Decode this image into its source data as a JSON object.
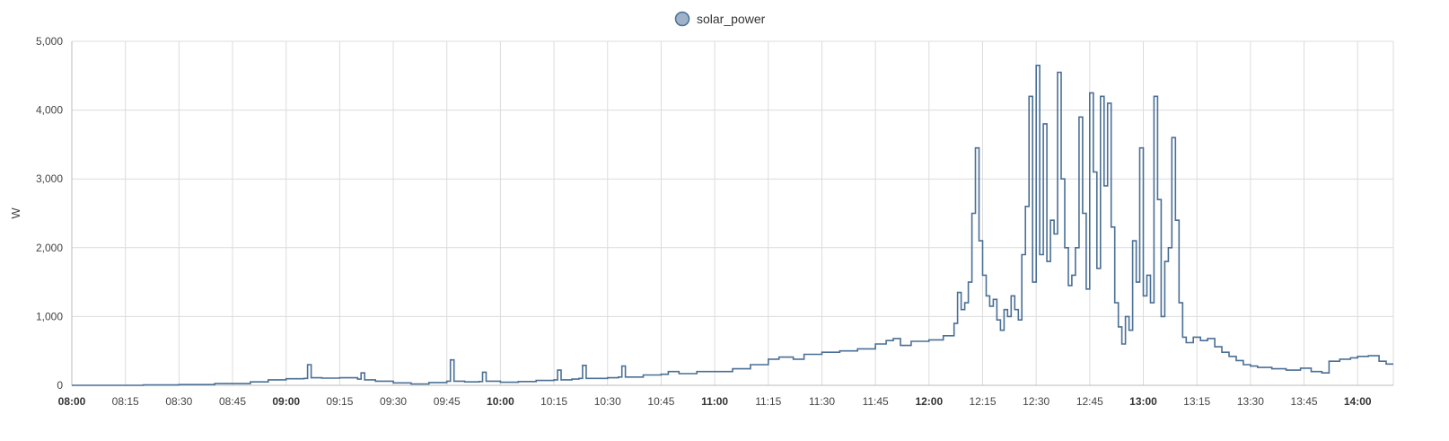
{
  "chart_data": {
    "type": "line",
    "legend": {
      "placement": "top-center",
      "entries": [
        {
          "name": "solar_power",
          "color": "#4a6f95",
          "swatch_fill": "#9fb3c8"
        }
      ]
    },
    "ylabel": "W",
    "xlabel": "",
    "ylim": [
      0,
      5000
    ],
    "yticks": [
      0,
      1000,
      2000,
      3000,
      4000,
      5000
    ],
    "ytick_labels": [
      "0",
      "1,000",
      "2,000",
      "3,000",
      "4,000",
      "5,000"
    ],
    "xlim": [
      "08:00",
      "14:10"
    ],
    "xticks": [
      {
        "label": "08:00",
        "bold": true
      },
      {
        "label": "08:15",
        "bold": false
      },
      {
        "label": "08:30",
        "bold": false
      },
      {
        "label": "08:45",
        "bold": false
      },
      {
        "label": "09:00",
        "bold": true
      },
      {
        "label": "09:15",
        "bold": false
      },
      {
        "label": "09:30",
        "bold": false
      },
      {
        "label": "09:45",
        "bold": false
      },
      {
        "label": "10:00",
        "bold": true
      },
      {
        "label": "10:15",
        "bold": false
      },
      {
        "label": "10:30",
        "bold": false
      },
      {
        "label": "10:45",
        "bold": false
      },
      {
        "label": "11:00",
        "bold": true
      },
      {
        "label": "11:15",
        "bold": false
      },
      {
        "label": "11:30",
        "bold": false
      },
      {
        "label": "11:45",
        "bold": false
      },
      {
        "label": "12:00",
        "bold": true
      },
      {
        "label": "12:15",
        "bold": false
      },
      {
        "label": "12:30",
        "bold": false
      },
      {
        "label": "12:45",
        "bold": false
      },
      {
        "label": "13:00",
        "bold": true
      },
      {
        "label": "13:15",
        "bold": false
      },
      {
        "label": "13:30",
        "bold": false
      },
      {
        "label": "13:45",
        "bold": false
      },
      {
        "label": "14:00",
        "bold": true
      }
    ],
    "grid": true,
    "series": [
      {
        "name": "solar_power",
        "color": "#4a6f95",
        "step": true,
        "points": [
          [
            "08:00",
            0
          ],
          [
            "08:20",
            5
          ],
          [
            "08:30",
            10
          ],
          [
            "08:40",
            25
          ],
          [
            "08:50",
            50
          ],
          [
            "08:55",
            80
          ],
          [
            "09:00",
            95
          ],
          [
            "09:05",
            100
          ],
          [
            "09:06",
            300
          ],
          [
            "09:07",
            110
          ],
          [
            "09:10",
            105
          ],
          [
            "09:15",
            110
          ],
          [
            "09:20",
            90
          ],
          [
            "09:21",
            180
          ],
          [
            "09:22",
            80
          ],
          [
            "09:25",
            60
          ],
          [
            "09:30",
            35
          ],
          [
            "09:35",
            20
          ],
          [
            "09:40",
            40
          ],
          [
            "09:45",
            60
          ],
          [
            "09:46",
            370
          ],
          [
            "09:47",
            60
          ],
          [
            "09:50",
            50
          ],
          [
            "09:54",
            55
          ],
          [
            "09:55",
            190
          ],
          [
            "09:56",
            60
          ],
          [
            "10:00",
            45
          ],
          [
            "10:05",
            55
          ],
          [
            "10:10",
            70
          ],
          [
            "10:15",
            80
          ],
          [
            "10:16",
            220
          ],
          [
            "10:17",
            80
          ],
          [
            "10:20",
            90
          ],
          [
            "10:22",
            100
          ],
          [
            "10:23",
            290
          ],
          [
            "10:24",
            100
          ],
          [
            "10:30",
            110
          ],
          [
            "10:33",
            120
          ],
          [
            "10:34",
            280
          ],
          [
            "10:35",
            120
          ],
          [
            "10:40",
            150
          ],
          [
            "10:45",
            160
          ],
          [
            "10:47",
            200
          ],
          [
            "10:50",
            170
          ],
          [
            "10:55",
            200
          ],
          [
            "11:00",
            200
          ],
          [
            "11:05",
            240
          ],
          [
            "11:10",
            300
          ],
          [
            "11:15",
            380
          ],
          [
            "11:18",
            410
          ],
          [
            "11:22",
            380
          ],
          [
            "11:25",
            450
          ],
          [
            "11:30",
            480
          ],
          [
            "11:35",
            500
          ],
          [
            "11:40",
            530
          ],
          [
            "11:45",
            600
          ],
          [
            "11:48",
            650
          ],
          [
            "11:50",
            680
          ],
          [
            "11:52",
            580
          ],
          [
            "11:55",
            640
          ],
          [
            "12:00",
            660
          ],
          [
            "12:04",
            720
          ],
          [
            "12:07",
            900
          ],
          [
            "12:08",
            1350
          ],
          [
            "12:09",
            1100
          ],
          [
            "12:10",
            1200
          ],
          [
            "12:11",
            1500
          ],
          [
            "12:12",
            2500
          ],
          [
            "12:13",
            3450
          ],
          [
            "12:14",
            2100
          ],
          [
            "12:15",
            1600
          ],
          [
            "12:16",
            1300
          ],
          [
            "12:17",
            1150
          ],
          [
            "12:18",
            1250
          ],
          [
            "12:19",
            950
          ],
          [
            "12:20",
            800
          ],
          [
            "12:21",
            1100
          ],
          [
            "12:22",
            1000
          ],
          [
            "12:23",
            1300
          ],
          [
            "12:24",
            1100
          ],
          [
            "12:25",
            950
          ],
          [
            "12:26",
            1900
          ],
          [
            "12:27",
            2600
          ],
          [
            "12:28",
            4200
          ],
          [
            "12:29",
            1500
          ],
          [
            "12:30",
            4650
          ],
          [
            "12:31",
            1900
          ],
          [
            "12:32",
            3800
          ],
          [
            "12:33",
            1800
          ],
          [
            "12:34",
            2400
          ],
          [
            "12:35",
            2200
          ],
          [
            "12:36",
            4550
          ],
          [
            "12:37",
            3000
          ],
          [
            "12:38",
            2000
          ],
          [
            "12:39",
            1450
          ],
          [
            "12:40",
            1600
          ],
          [
            "12:41",
            2000
          ],
          [
            "12:42",
            3900
          ],
          [
            "12:43",
            2500
          ],
          [
            "12:44",
            1400
          ],
          [
            "12:45",
            4250
          ],
          [
            "12:46",
            3100
          ],
          [
            "12:47",
            1700
          ],
          [
            "12:48",
            4200
          ],
          [
            "12:49",
            2900
          ],
          [
            "12:50",
            4100
          ],
          [
            "12:51",
            2300
          ],
          [
            "12:52",
            1200
          ],
          [
            "12:53",
            850
          ],
          [
            "12:54",
            600
          ],
          [
            "12:55",
            1000
          ],
          [
            "12:56",
            800
          ],
          [
            "12:57",
            2100
          ],
          [
            "12:58",
            1500
          ],
          [
            "12:59",
            3450
          ],
          [
            "13:00",
            1300
          ],
          [
            "13:01",
            1600
          ],
          [
            "13:02",
            1200
          ],
          [
            "13:03",
            4200
          ],
          [
            "13:04",
            2700
          ],
          [
            "13:05",
            1000
          ],
          [
            "13:06",
            1800
          ],
          [
            "13:07",
            2000
          ],
          [
            "13:08",
            3600
          ],
          [
            "13:09",
            2400
          ],
          [
            "13:10",
            1200
          ],
          [
            "13:11",
            700
          ],
          [
            "13:12",
            620
          ],
          [
            "13:14",
            700
          ],
          [
            "13:16",
            650
          ],
          [
            "13:18",
            680
          ],
          [
            "13:20",
            560
          ],
          [
            "13:22",
            480
          ],
          [
            "13:24",
            420
          ],
          [
            "13:26",
            360
          ],
          [
            "13:28",
            300
          ],
          [
            "13:30",
            280
          ],
          [
            "13:32",
            260
          ],
          [
            "13:36",
            240
          ],
          [
            "13:40",
            220
          ],
          [
            "13:44",
            250
          ],
          [
            "13:47",
            200
          ],
          [
            "13:50",
            180
          ],
          [
            "13:52",
            350
          ],
          [
            "13:55",
            380
          ],
          [
            "13:58",
            400
          ],
          [
            "14:00",
            420
          ],
          [
            "14:03",
            430
          ],
          [
            "14:06",
            350
          ],
          [
            "14:08",
            310
          ]
        ]
      }
    ]
  }
}
